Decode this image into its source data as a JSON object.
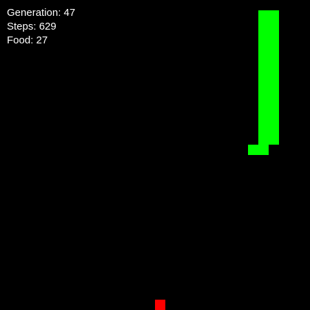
{
  "hud": {
    "generation_label": "Generation: 47",
    "steps_label": "Steps: 629",
    "food_label": "Food: 27"
  },
  "colors": {
    "background": "#000000",
    "snake": "#00ff00",
    "food": "#ff0000",
    "text": "#ffffff"
  },
  "snake": {
    "segments": [
      [
        25,
        1
      ],
      [
        26,
        1
      ],
      [
        25,
        2
      ],
      [
        26,
        2
      ],
      [
        25,
        3
      ],
      [
        26,
        3
      ],
      [
        25,
        4
      ],
      [
        26,
        4
      ],
      [
        25,
        5
      ],
      [
        26,
        5
      ],
      [
        25,
        6
      ],
      [
        26,
        6
      ],
      [
        25,
        7
      ],
      [
        26,
        7
      ],
      [
        25,
        8
      ],
      [
        26,
        8
      ],
      [
        25,
        9
      ],
      [
        26,
        9
      ],
      [
        25,
        10
      ],
      [
        26,
        10
      ],
      [
        25,
        11
      ],
      [
        26,
        11
      ],
      [
        25,
        12
      ],
      [
        26,
        12
      ],
      [
        25,
        13
      ],
      [
        26,
        13
      ],
      [
        24,
        14
      ],
      [
        25,
        14
      ]
    ]
  },
  "food": {
    "cell": [
      15,
      29
    ]
  }
}
